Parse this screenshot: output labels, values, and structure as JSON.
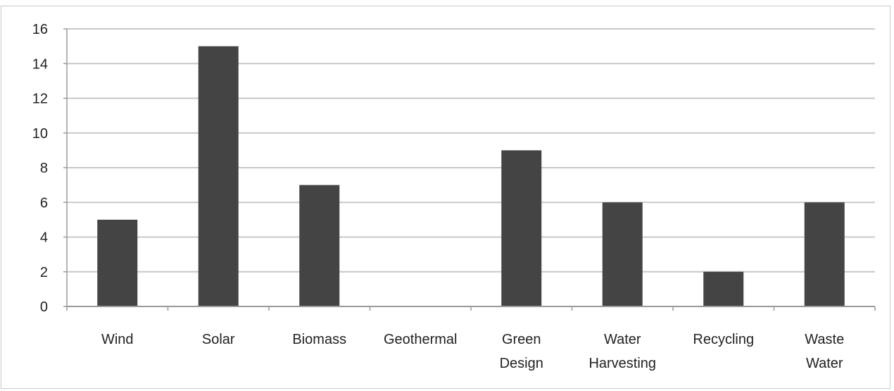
{
  "chart_data": {
    "type": "bar",
    "title": "",
    "xlabel": "",
    "ylabel": "",
    "categories": [
      [
        "Wind"
      ],
      [
        "Solar"
      ],
      [
        "Biomass"
      ],
      [
        "Geothermal"
      ],
      [
        "Green",
        "Design"
      ],
      [
        "Water",
        "Harvesting"
      ],
      [
        "Recycling"
      ],
      [
        "Waste",
        "Water"
      ]
    ],
    "values": [
      5,
      15,
      7,
      0,
      9,
      6,
      2,
      6
    ],
    "ylim": [
      0,
      16
    ],
    "yticks": [
      0,
      2,
      4,
      6,
      8,
      10,
      12,
      14,
      16
    ],
    "grid": true,
    "legend": "none",
    "colors": {
      "bar": "#444444",
      "grid": "#c8c8c8",
      "axis": "#9a9a9a",
      "text": "#222222"
    }
  }
}
